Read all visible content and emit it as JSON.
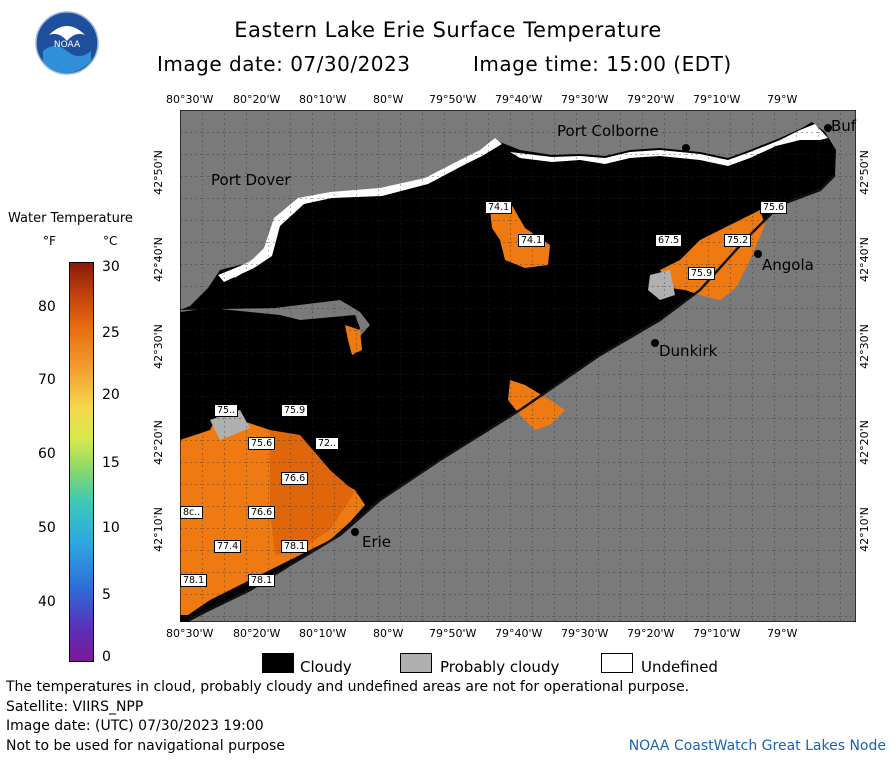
{
  "header": {
    "title": "Eastern Lake Erie Surface Temperature",
    "image_date": "Image date: 07/30/2023",
    "image_time": "Image time: 15:00 (EDT)",
    "logo_text": "NOAA"
  },
  "axes": {
    "longitudes": [
      "80°30'W",
      "80°20'W",
      "80°10'W",
      "80°W",
      "79°50'W",
      "79°40'W",
      "79°30'W",
      "79°20'W",
      "79°10'W",
      "79°W"
    ],
    "latitudes": [
      "42°50'N",
      "42°40'N",
      "42°30'N",
      "42°20'N",
      "42°10'N"
    ]
  },
  "legend": {
    "title": "Water Temperature",
    "unit_f": "°F",
    "unit_c": "°C",
    "fahrenheit_ticks": [
      "80",
      "70",
      "60",
      "50",
      "40"
    ],
    "celsius_ticks": [
      "30",
      "25",
      "20",
      "15",
      "10",
      "5",
      "0"
    ]
  },
  "cities": {
    "port_colborne": "Port Colborne",
    "port_dover": "Port Dover",
    "angola": "Angola",
    "dunkirk": "Dunkirk",
    "erie": "Erie",
    "buffalo": "Buf"
  },
  "temperature_labels": [
    {
      "id": "t1",
      "text": "74.1"
    },
    {
      "id": "t2",
      "text": "74.1"
    },
    {
      "id": "t3",
      "text": "75.6"
    },
    {
      "id": "t4",
      "text": "67.5"
    },
    {
      "id": "t5",
      "text": "75.2"
    },
    {
      "id": "t6",
      "text": "75.9"
    },
    {
      "id": "t7",
      "text": "75.."
    },
    {
      "id": "t8",
      "text": "75.9"
    },
    {
      "id": "t9",
      "text": "75.6"
    },
    {
      "id": "t10",
      "text": "72.."
    },
    {
      "id": "t11",
      "text": "76.6"
    },
    {
      "id": "t12",
      "text": "76.6"
    },
    {
      "id": "t13",
      "text": "8c.."
    },
    {
      "id": "t14",
      "text": "77.4"
    },
    {
      "id": "t15",
      "text": "78.1"
    },
    {
      "id": "t16",
      "text": "78.1"
    },
    {
      "id": "t17",
      "text": "78.1"
    }
  ],
  "map_key": {
    "cloudy": "Cloudy",
    "probably_cloudy": "Probably cloudy",
    "undefined": "Undefined"
  },
  "notes": {
    "disclaimer": "The temperatures in cloud, probably cloudy and undefined areas are not for operational purpose.",
    "satellite": "Satellite: VIIRS_NPP",
    "utc_date": "Image date: (UTC) 07/30/2023  19:00",
    "navigation": "Not to be used for navigational purpose"
  },
  "credit": "NOAA CoastWatch Great Lakes Node",
  "colors": {
    "land": "#7a7a7a",
    "cloud": "#000000",
    "probably_cloud": "#b0b0b0",
    "water_warm": "#f07a12",
    "water_hot": "#d8560a",
    "credit_blue": "#1a63b0"
  }
}
